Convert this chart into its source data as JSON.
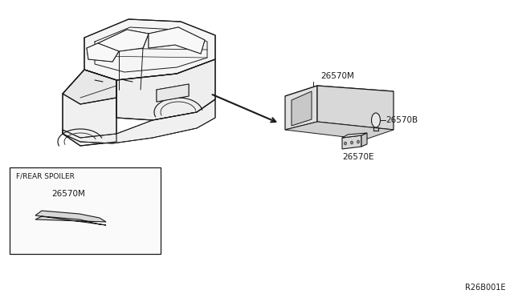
{
  "bg_color": "#ffffff",
  "line_color": "#1a1a1a",
  "gray_fill": "#e8e8e8",
  "dark_gray": "#c0c0c0",
  "title_code": "R26B001E",
  "label_26570M_main": "26570M",
  "label_26570B": "26570B",
  "label_26570E": "26570E",
  "label_26570M_box": "26570M",
  "box_label": "F/REAR SPOILER",
  "font_size_label": 7.5,
  "font_size_code": 7.0,
  "font_family": "DejaVu Sans"
}
